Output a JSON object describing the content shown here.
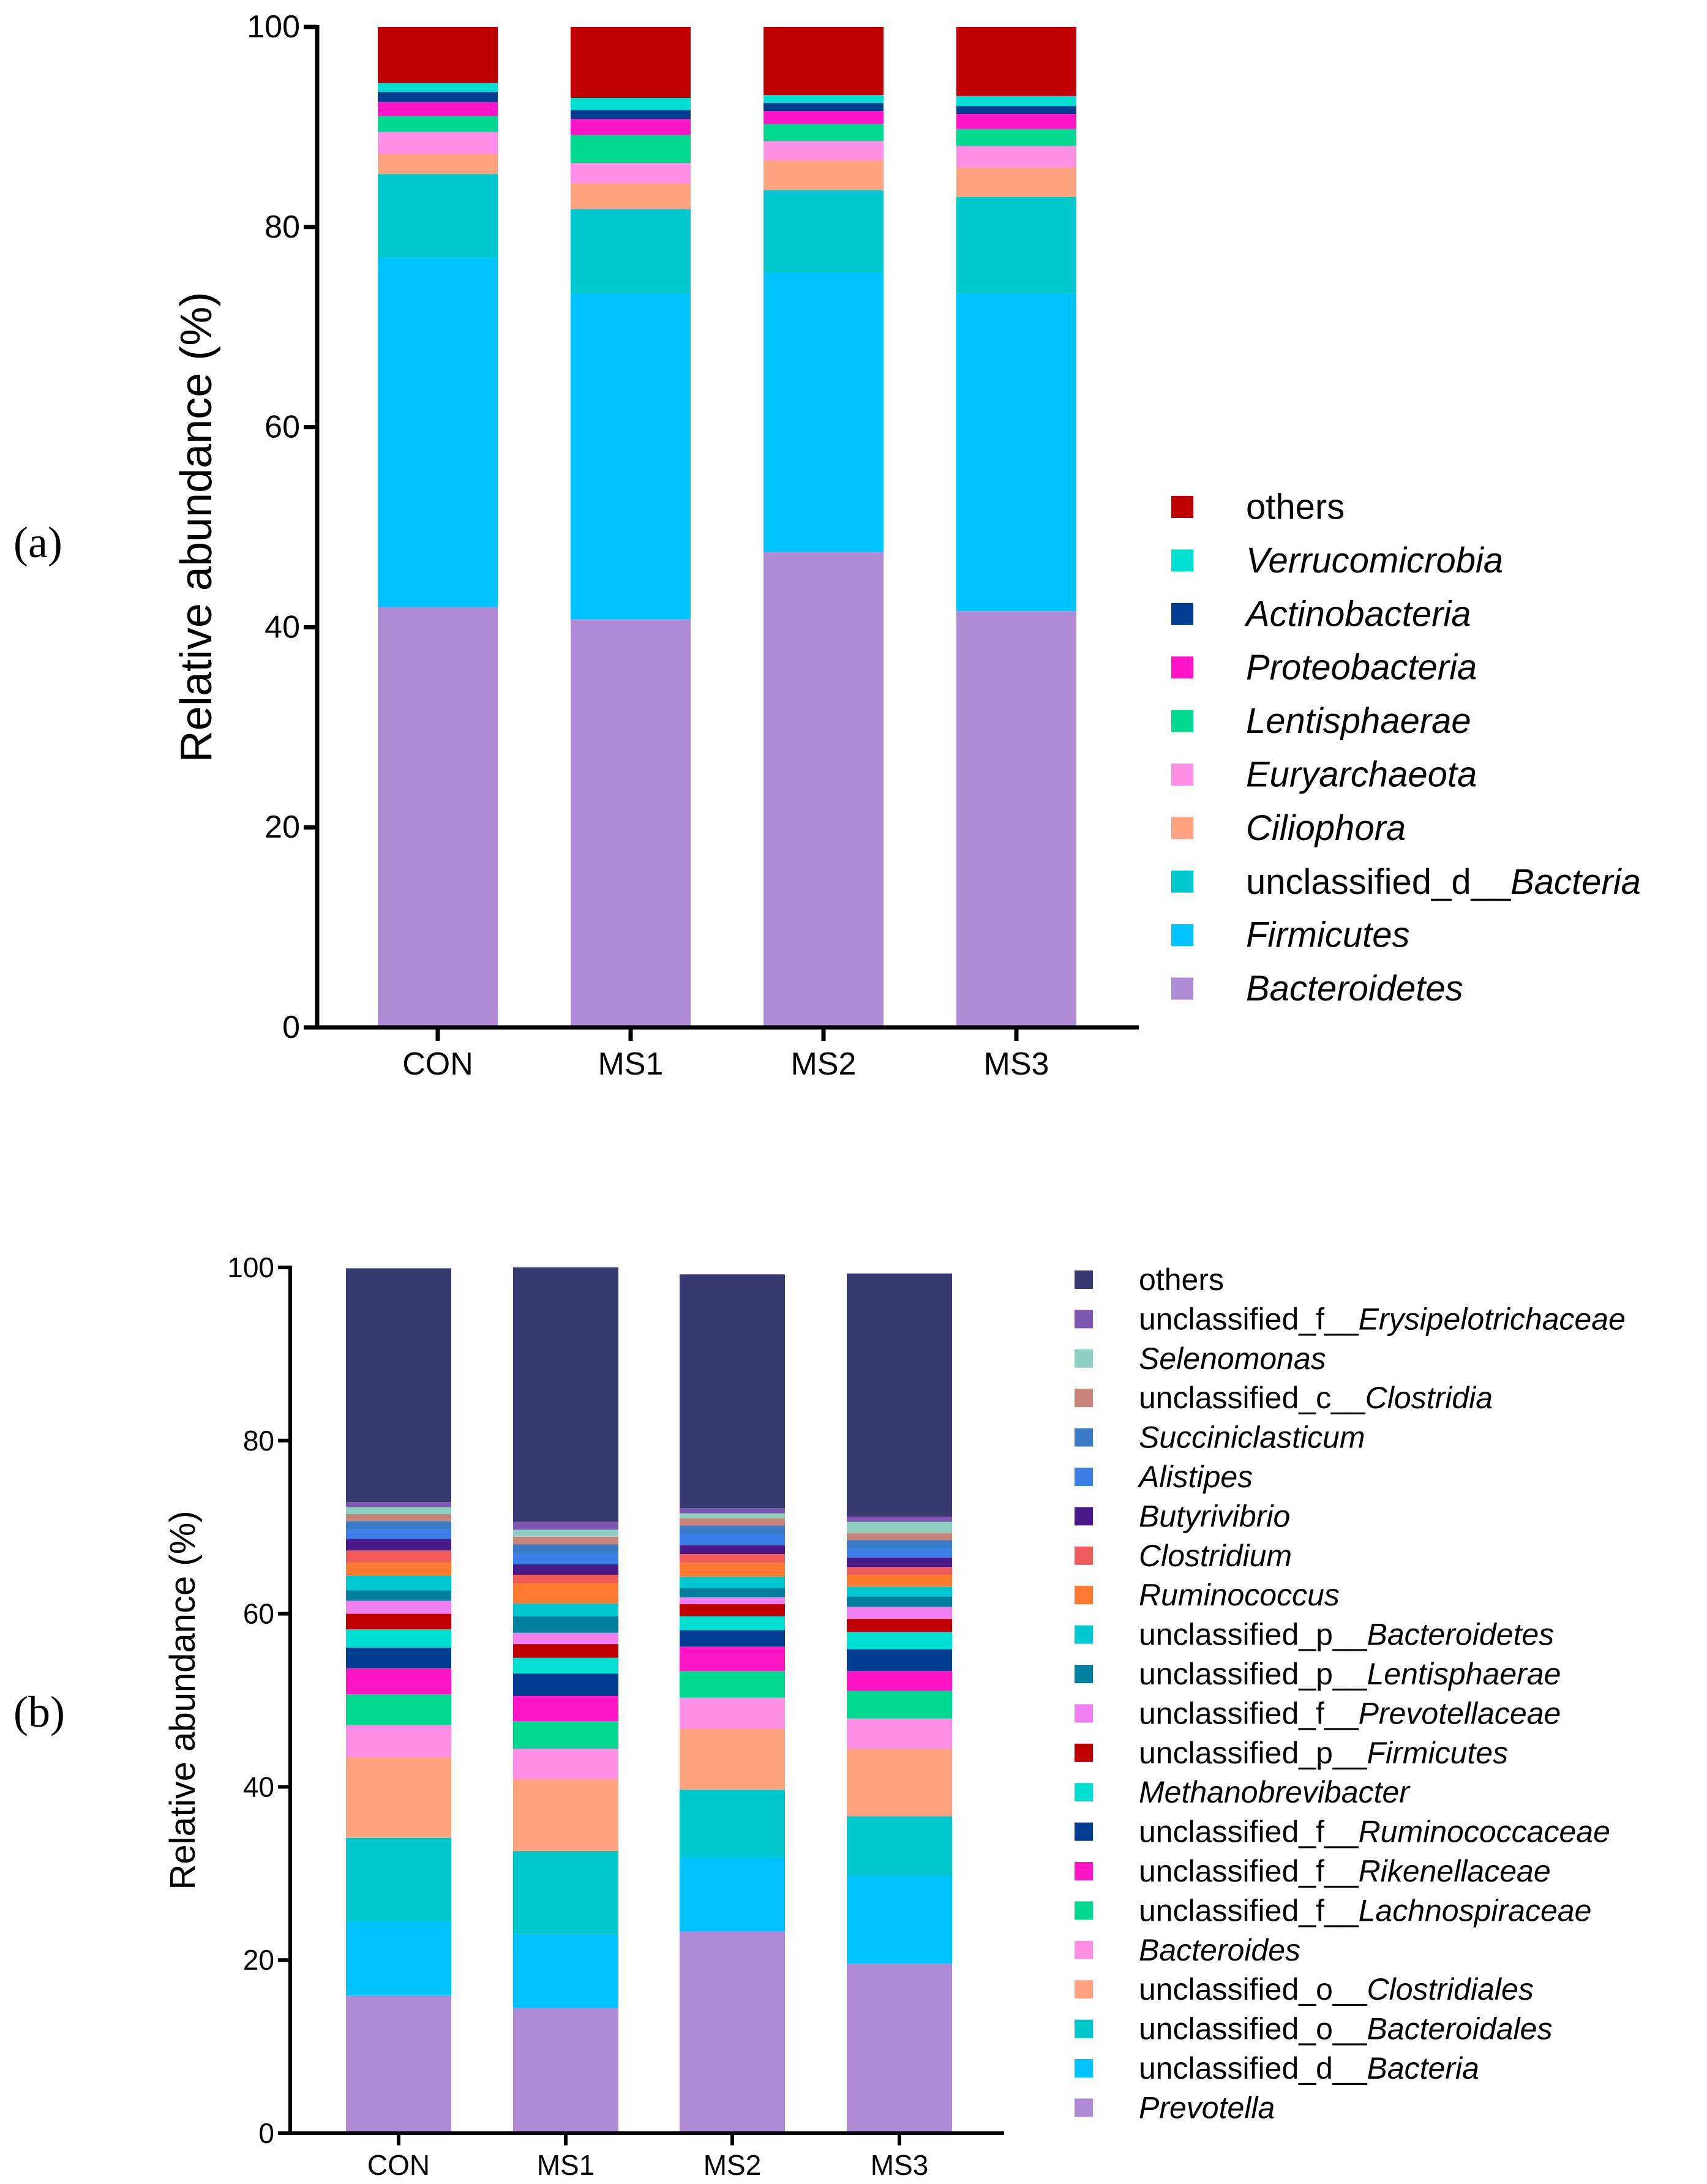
{
  "panels": {
    "a": {
      "label": "(a)"
    },
    "b": {
      "label": "(b)"
    }
  },
  "chart_data": [
    {
      "type": "bar",
      "stacked": true,
      "title": "",
      "xlabel": "",
      "ylabel": "Relative abundance (%)",
      "ylim": [
        0,
        100
      ],
      "yticks": [
        0,
        20,
        40,
        60,
        80,
        100
      ],
      "categories": [
        "CON",
        "MS1",
        "MS2",
        "MS3"
      ],
      "series": [
        {
          "name": "Bacteroidetes",
          "italic": true,
          "color": "#AF8BD6",
          "values": [
            42.0,
            40.8,
            47.5,
            41.6
          ]
        },
        {
          "name": "Firmicutes",
          "italic": true,
          "color": "#00C3FF",
          "values": [
            34.9,
            32.6,
            27.9,
            31.8
          ]
        },
        {
          "name_parts": [
            "unclassified_d__",
            "Bacteria"
          ],
          "name": "unclassified_d__Bacteria",
          "color": "#00C8CC",
          "values": [
            8.4,
            8.4,
            8.3,
            9.6
          ]
        },
        {
          "name": "Ciliophora",
          "italic": true,
          "color": "#FFA27F",
          "values": [
            2.0,
            2.6,
            3.0,
            3.0
          ]
        },
        {
          "name": "Euryarchaeota",
          "italic": true,
          "color": "#FF8EE6",
          "values": [
            2.2,
            2.0,
            1.9,
            2.1
          ]
        },
        {
          "name": "Lentisphaerae",
          "italic": true,
          "color": "#00D98F",
          "values": [
            1.6,
            2.8,
            1.7,
            1.7
          ]
        },
        {
          "name": "Proteobacteria",
          "italic": true,
          "color": "#FF14C6",
          "values": [
            1.4,
            1.6,
            1.3,
            1.5
          ]
        },
        {
          "name": "Actinobacteria",
          "italic": true,
          "color": "#003C8F",
          "values": [
            1.0,
            0.9,
            0.8,
            0.8
          ]
        },
        {
          "name": "Verrucomicrobia",
          "italic": true,
          "color": "#00E0D2",
          "values": [
            0.9,
            1.2,
            0.8,
            1.0
          ]
        },
        {
          "name": "others",
          "italic": false,
          "color": "#C00000",
          "values": [
            5.6,
            7.1,
            6.8,
            6.9
          ]
        }
      ]
    },
    {
      "type": "bar",
      "stacked": true,
      "title": "",
      "xlabel": "",
      "ylabel": "Relative abundance (%)",
      "ylim": [
        0,
        100
      ],
      "yticks": [
        0,
        20,
        40,
        60,
        80,
        100
      ],
      "categories": [
        "CON",
        "MS1",
        "MS2",
        "MS3"
      ],
      "series": [
        {
          "name": "Prevotella",
          "italic": true,
          "color": "#AF8BD6",
          "values": [
            15.9,
            14.5,
            23.3,
            19.6
          ]
        },
        {
          "name_parts": [
            "unclassified_d__",
            "Bacteria"
          ],
          "name": "unclassified_d__Bacteria",
          "color": "#00C3FF",
          "values": [
            8.6,
            8.5,
            8.6,
            10.1
          ]
        },
        {
          "name_parts": [
            "unclassified_o__",
            "Bacteroidales"
          ],
          "name": "unclassified_o__Bacteroidales",
          "color": "#00C8CC",
          "values": [
            9.6,
            9.6,
            7.8,
            6.9
          ]
        },
        {
          "name_parts": [
            "unclassified_o__",
            "Clostridiales"
          ],
          "name": "unclassified_o__Clostridiales",
          "color": "#FFA27F",
          "values": [
            9.4,
            8.3,
            7.0,
            7.8
          ]
        },
        {
          "name": "Bacteroides",
          "italic": true,
          "color": "#FF8EE6",
          "values": [
            3.6,
            3.5,
            3.6,
            3.5
          ]
        },
        {
          "name_parts": [
            "unclassified_f__",
            "Lachnospiraceae"
          ],
          "name": "unclassified_f__Lachnospiraceae",
          "color": "#00D98F",
          "values": [
            3.6,
            3.2,
            3.1,
            3.2
          ]
        },
        {
          "name_parts": [
            "unclassified_f__",
            "Rikenellaceae"
          ],
          "name": "unclassified_f__Rikenellaceae",
          "color": "#FF14C6",
          "values": [
            3.0,
            2.9,
            2.8,
            2.3
          ]
        },
        {
          "name_parts": [
            "unclassified_f__",
            "Ruminococcaceae"
          ],
          "name": "unclassified_f__Ruminococcaceae",
          "color": "#003C8F",
          "values": [
            2.4,
            2.6,
            1.9,
            2.5
          ]
        },
        {
          "name": "Methanobrevibacter",
          "italic": true,
          "color": "#00E0D2",
          "values": [
            2.1,
            1.8,
            1.6,
            2.0
          ]
        },
        {
          "name_parts": [
            "unclassified_p__",
            "Firmicutes"
          ],
          "name": "unclassified_p__Firmicutes",
          "color": "#C00000",
          "values": [
            1.8,
            1.6,
            1.4,
            1.5
          ]
        },
        {
          "name_parts": [
            "unclassified_f__",
            "Prevotellaceae"
          ],
          "name": "unclassified_f__Prevotellaceae",
          "color": "#F080F0",
          "values": [
            1.5,
            1.3,
            0.8,
            1.4
          ]
        },
        {
          "name_parts": [
            "unclassified_p__",
            "Lentisphaerae"
          ],
          "name": "unclassified_p__Lentisphaerae",
          "color": "#00809E",
          "values": [
            1.2,
            1.9,
            1.1,
            1.2
          ]
        },
        {
          "name_parts": [
            "unclassified_p__",
            "Bacteroidetes"
          ],
          "name": "unclassified_p__Bacteroidetes",
          "color": "#00C8D2",
          "values": [
            1.7,
            1.5,
            1.3,
            1.1
          ]
        },
        {
          "name": "Ruminococcus",
          "italic": true,
          "color": "#FF7A30",
          "values": [
            1.5,
            2.3,
            1.6,
            1.4
          ]
        },
        {
          "name": "Clostridium",
          "italic": true,
          "color": "#F05A5A",
          "values": [
            1.4,
            1.0,
            1.0,
            0.9
          ]
        },
        {
          "name": "Butyrivibrio",
          "italic": true,
          "color": "#4A1A8A",
          "values": [
            1.3,
            1.2,
            1.0,
            1.1
          ]
        },
        {
          "name": "Alistipes",
          "italic": true,
          "color": "#3C7FE8",
          "values": [
            1.2,
            1.3,
            1.3,
            1.0
          ]
        },
        {
          "name": "Succiniclasticum",
          "italic": true,
          "color": "#3A7CC8",
          "values": [
            0.9,
            1.0,
            1.0,
            1.0
          ]
        },
        {
          "name_parts": [
            "unclassified_c__",
            "Clostridia"
          ],
          "name": "unclassified_c__Clostridia",
          "color": "#C88478",
          "values": [
            0.8,
            0.9,
            0.8,
            0.8
          ]
        },
        {
          "name": "Selenomonas",
          "italic": true,
          "color": "#8FCFC2",
          "values": [
            0.8,
            0.8,
            0.6,
            1.3
          ]
        },
        {
          "name_parts": [
            "unclassified_f__",
            "Erysipelotrichaceae"
          ],
          "name": "unclassified_f__Erysipelotrichaceae",
          "color": "#7E57B0",
          "values": [
            0.6,
            0.9,
            0.6,
            0.6
          ]
        },
        {
          "name": "others",
          "italic": false,
          "color": "#393A72",
          "values": [
            27.0,
            29.4,
            27.0,
            28.1
          ]
        }
      ]
    }
  ]
}
